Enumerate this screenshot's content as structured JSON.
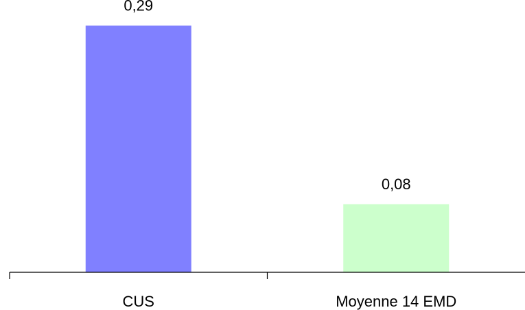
{
  "chart_data": {
    "type": "bar",
    "categories": [
      "CUS",
      "Moyenne 14 EMD"
    ],
    "values": [
      0.29,
      0.08
    ],
    "value_labels": [
      "0,29",
      "0,08"
    ],
    "colors": [
      "#8080FF",
      "#CCFFCC"
    ],
    "title": "",
    "xlabel": "",
    "ylabel": "",
    "ylim": [
      0,
      0.3
    ],
    "grid": false,
    "legend": "none"
  }
}
